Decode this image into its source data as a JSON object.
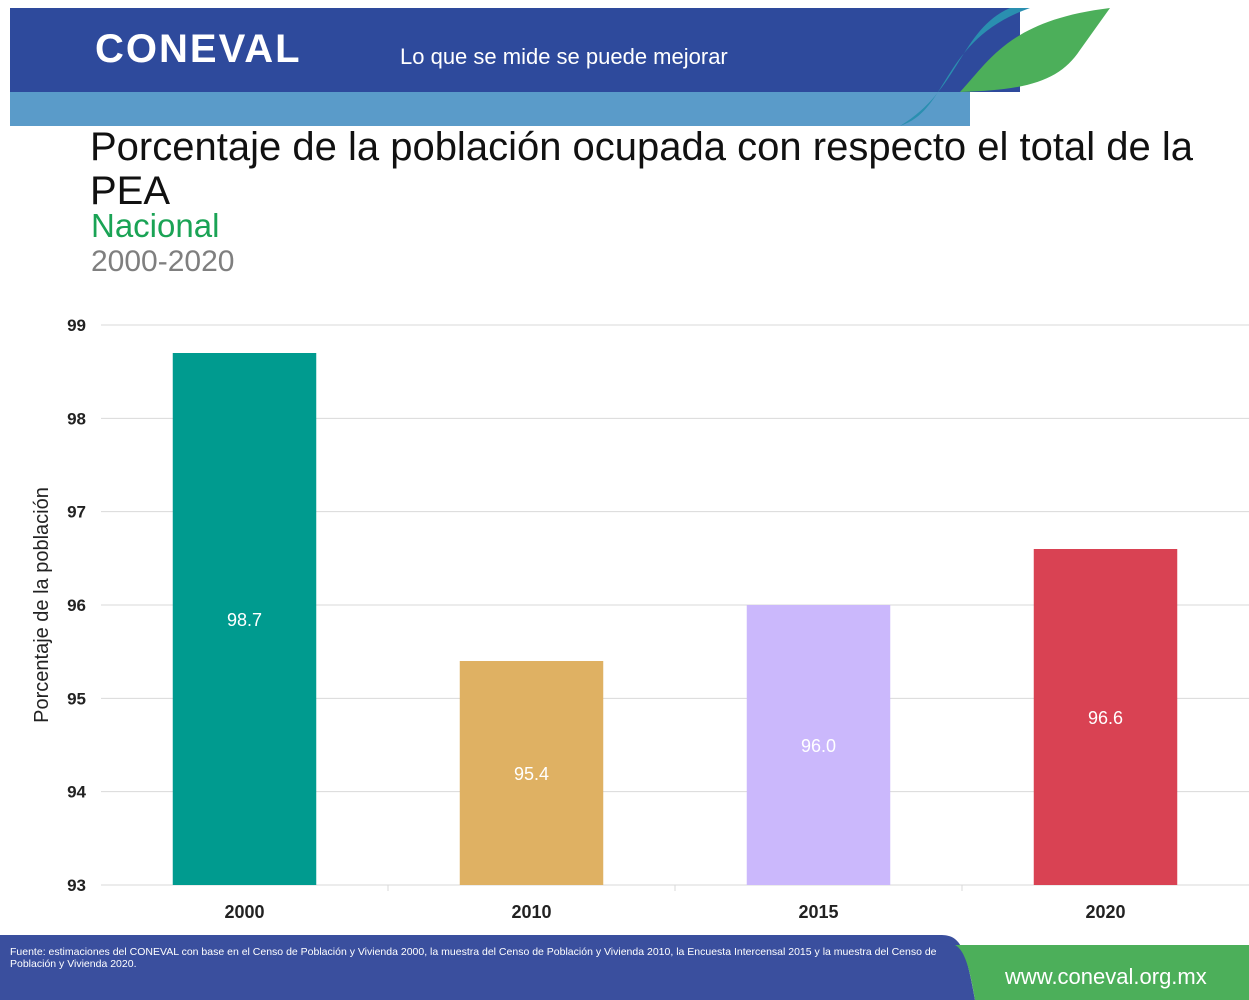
{
  "header": {
    "logo": "CONEVAL",
    "tagline": "Lo que se mide se puede mejorar"
  },
  "chart_data": {
    "type": "bar",
    "title": "Porcentaje de la población ocupada con respecto el total de la PEA",
    "subtitle": "Nacional",
    "period": "2000-2020",
    "y_label": "Porcentaje de la población",
    "categories": [
      "2000",
      "2010",
      "2015",
      "2020"
    ],
    "values": [
      98.7,
      95.4,
      96.0,
      96.6
    ],
    "value_labels": [
      "98.7",
      "95.4",
      "96.0",
      "96.6"
    ],
    "colors": [
      "#009b8f",
      "#dfb163",
      "#cbb8fc",
      "#d94253"
    ],
    "ylim": [
      93,
      99
    ],
    "yticks": [
      93,
      94,
      95,
      96,
      97,
      98,
      99
    ],
    "grid": true
  },
  "footer": {
    "source": "Fuente: estimaciones del CONEVAL con base en el Censo de Población y Vivienda 2000, la muestra del Censo de Población y Vivienda 2010, la Encuesta Intercensal 2015 y la muestra del Censo de Población y Vivienda 2020.",
    "website": "www.coneval.org.mx"
  }
}
